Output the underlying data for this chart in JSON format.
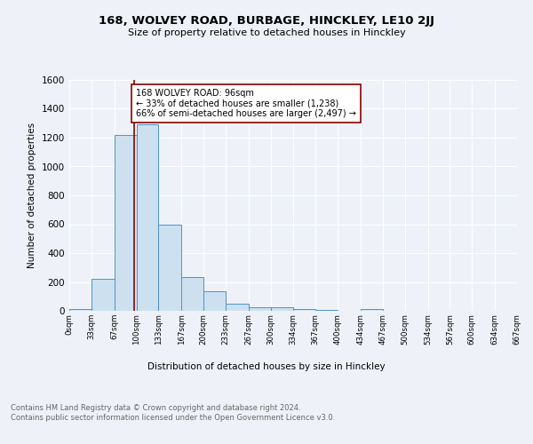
{
  "title": "168, WOLVEY ROAD, BURBAGE, HINCKLEY, LE10 2JJ",
  "subtitle": "Size of property relative to detached houses in Hinckley",
  "xlabel": "Distribution of detached houses by size in Hinckley",
  "ylabel": "Number of detached properties",
  "bin_edges": [
    0,
    33,
    67,
    100,
    133,
    167,
    200,
    233,
    267,
    300,
    334,
    367,
    400,
    434,
    467,
    500,
    534,
    567,
    600,
    634,
    667
  ],
  "bar_heights": [
    15,
    220,
    1220,
    1290,
    595,
    235,
    133,
    50,
    25,
    22,
    12,
    5,
    0,
    15,
    0,
    0,
    0,
    0,
    0,
    0
  ],
  "bar_color": "#cce0f0",
  "bar_edge_color": "#4d94c8",
  "property_value": 96,
  "vline_color": "#8b0000",
  "annotation_text": "168 WOLVEY ROAD: 96sqm\n← 33% of detached houses are smaller (1,238)\n66% of semi-detached houses are larger (2,497) →",
  "annotation_box_color": "white",
  "annotation_box_edge": "#8b0000",
  "footer_text": "Contains HM Land Registry data © Crown copyright and database right 2024.\nContains public sector information licensed under the Open Government Licence v3.0.",
  "ylim": [
    0,
    1600
  ],
  "background_color": "#eef2f8",
  "tick_labels": [
    "0sqm",
    "33sqm",
    "67sqm",
    "100sqm",
    "133sqm",
    "167sqm",
    "200sqm",
    "233sqm",
    "267sqm",
    "300sqm",
    "334sqm",
    "367sqm",
    "400sqm",
    "434sqm",
    "467sqm",
    "500sqm",
    "534sqm",
    "567sqm",
    "600sqm",
    "634sqm",
    "667sqm"
  ]
}
